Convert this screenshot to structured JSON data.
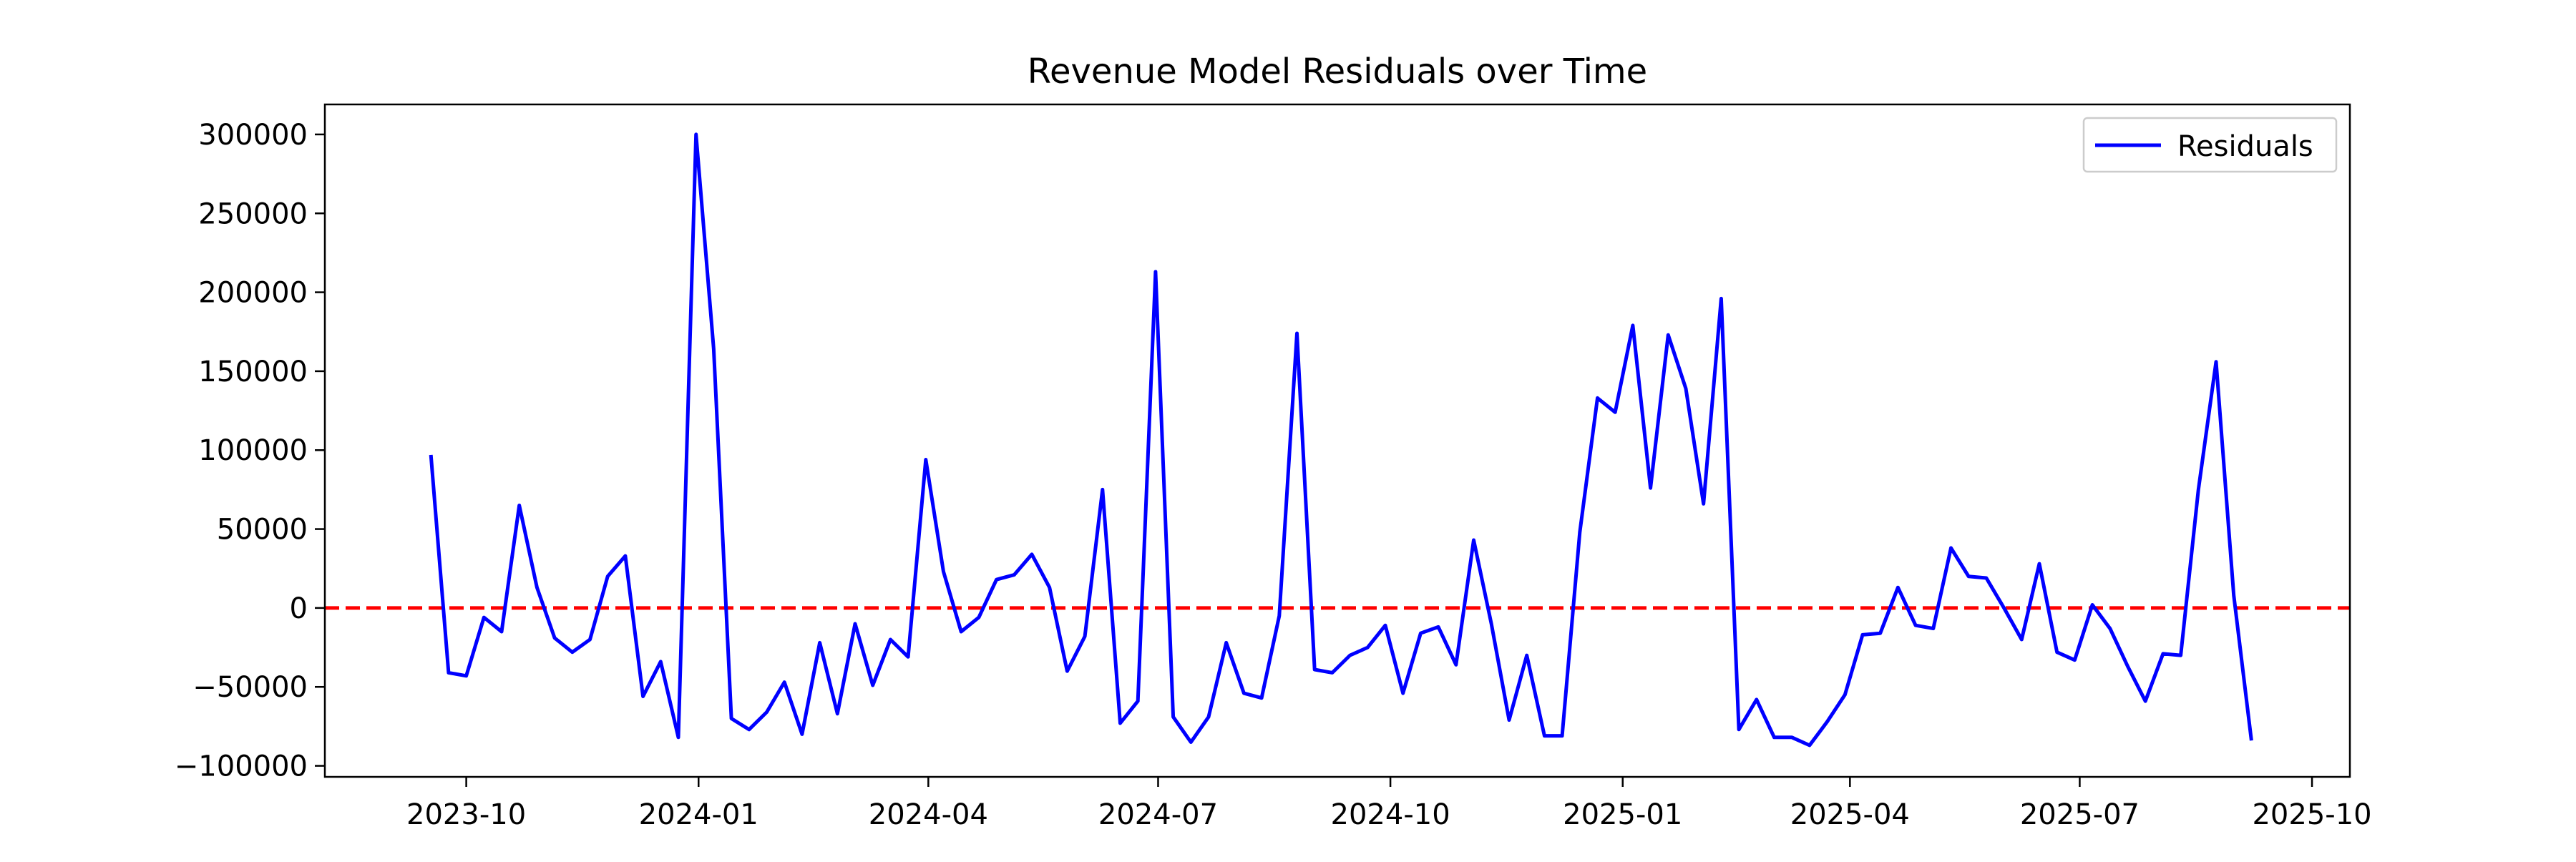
{
  "chart_data": {
    "type": "line",
    "title": "Revenue Model Residuals over Time",
    "xlabel": "",
    "ylabel": "",
    "x_ticks": [
      "2023-10",
      "2024-01",
      "2024-04",
      "2024-07",
      "2024-10",
      "2025-01",
      "2025-04",
      "2025-07",
      "2025-10"
    ],
    "y_ticks": [
      "300000",
      "250000",
      "200000",
      "150000",
      "100000",
      "50000",
      "0",
      "−50000",
      "−100000"
    ],
    "xlim": [
      "2023-08-06",
      "2025-10-16"
    ],
    "ylim": [
      -107000,
      319000
    ],
    "grid": false,
    "legend_placement": "upper right",
    "reference_line": {
      "y": 0,
      "style": "dashed",
      "color": "#ff0000"
    },
    "series": [
      {
        "name": "Residuals",
        "color": "#0000ff",
        "x": [
          "2023-09-17",
          "2023-09-24",
          "2023-10-01",
          "2023-10-08",
          "2023-10-15",
          "2023-10-22",
          "2023-10-29",
          "2023-11-05",
          "2023-11-12",
          "2023-11-19",
          "2023-11-26",
          "2023-12-03",
          "2023-12-10",
          "2023-12-17",
          "2023-12-24",
          "2023-12-31",
          "2024-01-07",
          "2024-01-14",
          "2024-01-21",
          "2024-01-28",
          "2024-02-04",
          "2024-02-11",
          "2024-02-18",
          "2024-02-25",
          "2024-03-03",
          "2024-03-10",
          "2024-03-17",
          "2024-03-24",
          "2024-03-31",
          "2024-04-07",
          "2024-04-14",
          "2024-04-21",
          "2024-04-28",
          "2024-05-05",
          "2024-05-12",
          "2024-05-19",
          "2024-05-26",
          "2024-06-02",
          "2024-06-09",
          "2024-06-16",
          "2024-06-23",
          "2024-06-30",
          "2024-07-07",
          "2024-07-14",
          "2024-07-21",
          "2024-07-28",
          "2024-08-04",
          "2024-08-11",
          "2024-08-18",
          "2024-08-25",
          "2024-09-01",
          "2024-09-08",
          "2024-09-15",
          "2024-09-22",
          "2024-09-29",
          "2024-10-06",
          "2024-10-13",
          "2024-10-20",
          "2024-10-27",
          "2024-11-03",
          "2024-11-10",
          "2024-11-17",
          "2024-11-24",
          "2024-12-01",
          "2024-12-08",
          "2024-12-15",
          "2024-12-22",
          "2024-12-29",
          "2025-01-05",
          "2025-01-12",
          "2025-01-19",
          "2025-01-26",
          "2025-02-02",
          "2025-02-09",
          "2025-02-16",
          "2025-02-23",
          "2025-03-02",
          "2025-03-09",
          "2025-03-16",
          "2025-03-23",
          "2025-03-30",
          "2025-04-06",
          "2025-04-13",
          "2025-04-20",
          "2025-04-27",
          "2025-05-04",
          "2025-05-11",
          "2025-05-18",
          "2025-05-25",
          "2025-06-01",
          "2025-06-08",
          "2025-06-15",
          "2025-06-22",
          "2025-06-29",
          "2025-07-06",
          "2025-07-13",
          "2025-07-20",
          "2025-07-27",
          "2025-08-03",
          "2025-08-10",
          "2025-08-17",
          "2025-08-24",
          "2025-08-31",
          "2025-09-07"
        ],
        "values": [
          97000,
          -41000,
          -43000,
          -6000,
          -15000,
          65000,
          13000,
          -19000,
          -28000,
          -20000,
          20000,
          33000,
          -56000,
          -34000,
          -82000,
          300000,
          164000,
          -70000,
          -77000,
          -66000,
          -47000,
          -80000,
          -22000,
          -67000,
          -10000,
          -49000,
          -20000,
          -31000,
          94000,
          23000,
          -15000,
          -6000,
          18000,
          21000,
          34000,
          13000,
          -40000,
          -18000,
          75000,
          -73000,
          -59000,
          213000,
          -69000,
          -85000,
          -69000,
          -22000,
          -54000,
          -57000,
          -5000,
          174000,
          -39000,
          -41000,
          -30000,
          -25000,
          -11000,
          -54000,
          -16000,
          -12000,
          -36000,
          43000,
          -10000,
          -71000,
          -30000,
          -81000,
          -81000,
          48000,
          133000,
          124000,
          179000,
          76000,
          173000,
          139000,
          66000,
          196000,
          -77000,
          -58000,
          -82000,
          -82000,
          -87000,
          -72000,
          -55000,
          -17000,
          -16000,
          13000,
          -11000,
          -13000,
          38000,
          20000,
          19000,
          0,
          -20000,
          28000,
          -28000,
          -33000,
          2000,
          -13000,
          -37000,
          -59000,
          -29000,
          -30000,
          75000,
          156000,
          8000,
          -84000
        ]
      }
    ]
  }
}
